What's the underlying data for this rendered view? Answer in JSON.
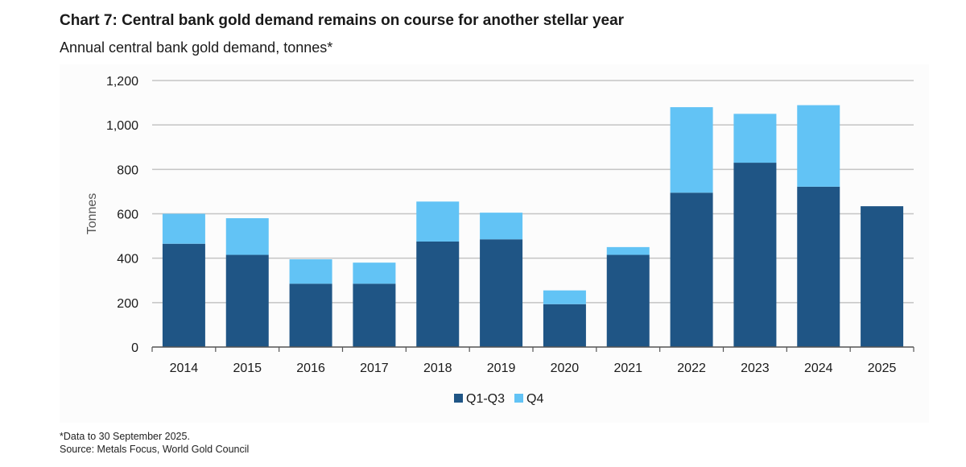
{
  "title": "Chart 7: Central bank gold demand remains on course for another stellar year",
  "subtitle": "Annual central bank gold demand, tonnes*",
  "footnote": "*Data to 30 September 2025.",
  "source": "Source: Metals Focus, World Gold Council",
  "colors": {
    "q1q3": "#1f5585",
    "q4": "#62c3f5",
    "grid": "#c4c4c4",
    "axis": "#555555"
  },
  "chart_data": {
    "type": "bar",
    "stacked": true,
    "categories": [
      "2014",
      "2015",
      "2016",
      "2017",
      "2018",
      "2019",
      "2020",
      "2021",
      "2022",
      "2023",
      "2024",
      "2025"
    ],
    "series": [
      {
        "name": "Q1-Q3",
        "values": [
          465,
          415,
          285,
          285,
          475,
          485,
          193,
          415,
          695,
          830,
          722,
          634
        ]
      },
      {
        "name": "Q4",
        "values": [
          135,
          165,
          110,
          95,
          180,
          120,
          62,
          35,
          385,
          220,
          367,
          0
        ]
      }
    ],
    "title": "Annual central bank gold demand, tonnes*",
    "xlabel": "",
    "ylabel": "Tonnes",
    "ylim": [
      0,
      1200
    ],
    "yticks": [
      0,
      200,
      400,
      600,
      800,
      1000,
      1200
    ],
    "ytick_labels": [
      "0",
      "200",
      "400",
      "600",
      "800",
      "1,000",
      "1,200"
    ],
    "grid": true,
    "legend_position": "bottom-center"
  }
}
